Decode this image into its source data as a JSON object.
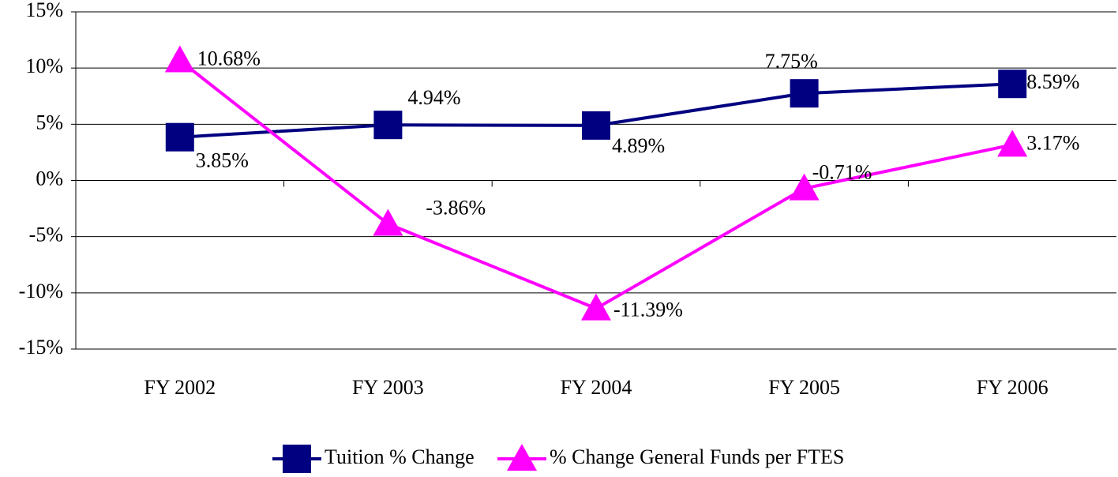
{
  "chart_data": {
    "type": "line",
    "categories": [
      "FY 2002",
      "FY 2003",
      "FY 2004",
      "FY 2005",
      "FY 2006"
    ],
    "series": [
      {
        "name": "Tuition % Change",
        "color": "#000080",
        "marker": "square",
        "values": [
          3.85,
          4.94,
          4.89,
          7.75,
          8.59
        ],
        "value_labels": [
          "3.85%",
          "4.94%",
          "4.89%",
          "7.75%",
          "8.59%"
        ]
      },
      {
        "name": "% Change General Funds per FTES",
        "color": "#ff00ff",
        "marker": "triangle",
        "values": [
          10.68,
          -3.86,
          -11.39,
          -0.71,
          3.17
        ],
        "value_labels": [
          "10.68%",
          "-3.86%",
          "-11.39%",
          "-0.71%",
          "3.17%"
        ]
      }
    ],
    "ylim": [
      -15,
      15
    ],
    "yticks": [
      {
        "value": -15,
        "label": "-15%"
      },
      {
        "value": -10,
        "label": "-10%"
      },
      {
        "value": -5,
        "label": "-5%"
      },
      {
        "value": 0,
        "label": "0%"
      },
      {
        "value": 5,
        "label": "5%"
      },
      {
        "value": 10,
        "label": "10%"
      },
      {
        "value": 15,
        "label": "15%"
      }
    ],
    "grid": true,
    "legend": "bottom"
  }
}
